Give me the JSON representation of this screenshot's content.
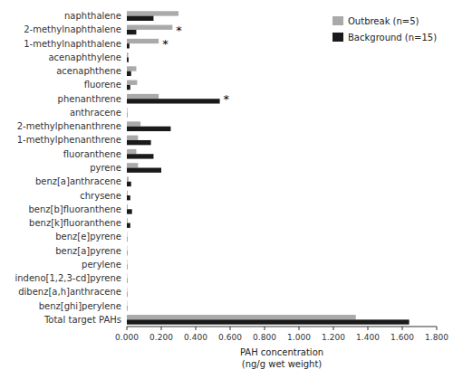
{
  "chart_data": {
    "type": "bar",
    "orientation": "horizontal",
    "categories": [
      "naphthalene",
      "2-methylnaphthalene",
      "1-methylnaphthalene",
      "acenaphthylene",
      "acenaphthene",
      "fluorene",
      "phenanthrene",
      "anthracene",
      "2-methylphenanthrene",
      "1-methylphenanthrene",
      "fluoranthene",
      "pyrene",
      "benz[a]anthracene",
      "chrysene",
      "benz[b]fluoranthene",
      "benz[k]fluoranthene",
      "benz[e]pyrene",
      "benz[a]pyrene",
      "perylene",
      "indeno[1,2,3-cd]pyrene",
      "dibenz[a,h]anthracene",
      "benz[ghi]perylene",
      "Total target PAHs"
    ],
    "series": [
      {
        "name": "Outbreak (n=5)",
        "color": "#aaaaaa",
        "values": [
          0.3,
          0.265,
          0.185,
          0.008,
          0.055,
          0.06,
          0.185,
          0.003,
          0.08,
          0.065,
          0.055,
          0.065,
          0.01,
          0.005,
          0.005,
          0.005,
          0.002,
          0.002,
          0.002,
          0.002,
          0.002,
          0.002,
          1.33
        ]
      },
      {
        "name": "Background (n=15)",
        "color": "#1a1a1a",
        "values": [
          0.155,
          0.055,
          0.015,
          0.01,
          0.025,
          0.02,
          0.54,
          0.002,
          0.255,
          0.14,
          0.155,
          0.2,
          0.025,
          0.02,
          0.03,
          0.02,
          0.002,
          0.002,
          0.002,
          0.002,
          0.002,
          0.002,
          1.64
        ]
      }
    ],
    "annotations": [
      {
        "text": "*",
        "category": "2-methylnaphthalene"
      },
      {
        "text": "*",
        "category": "1-methylnaphthalene"
      },
      {
        "text": "*",
        "category": "phenanthrene"
      }
    ],
    "xlabel": "PAH concentration\n(ng/g wet weight)",
    "xlim": [
      0,
      1.8
    ],
    "xticks": [
      {
        "value": 0.0,
        "label": "0.000"
      },
      {
        "value": 0.2,
        "label": "0.200"
      },
      {
        "value": 0.4,
        "label": "0.400"
      },
      {
        "value": 0.6,
        "label": "0.600"
      },
      {
        "value": 0.8,
        "label": "0.800"
      },
      {
        "value": 1.0,
        "label": "1.000"
      },
      {
        "value": 1.2,
        "label": "1.200"
      },
      {
        "value": 1.4,
        "label": "1.400"
      },
      {
        "value": 1.6,
        "label": "1.600"
      },
      {
        "value": 1.8,
        "label": "1.800"
      }
    ],
    "legend": "upper right",
    "grid": false
  }
}
